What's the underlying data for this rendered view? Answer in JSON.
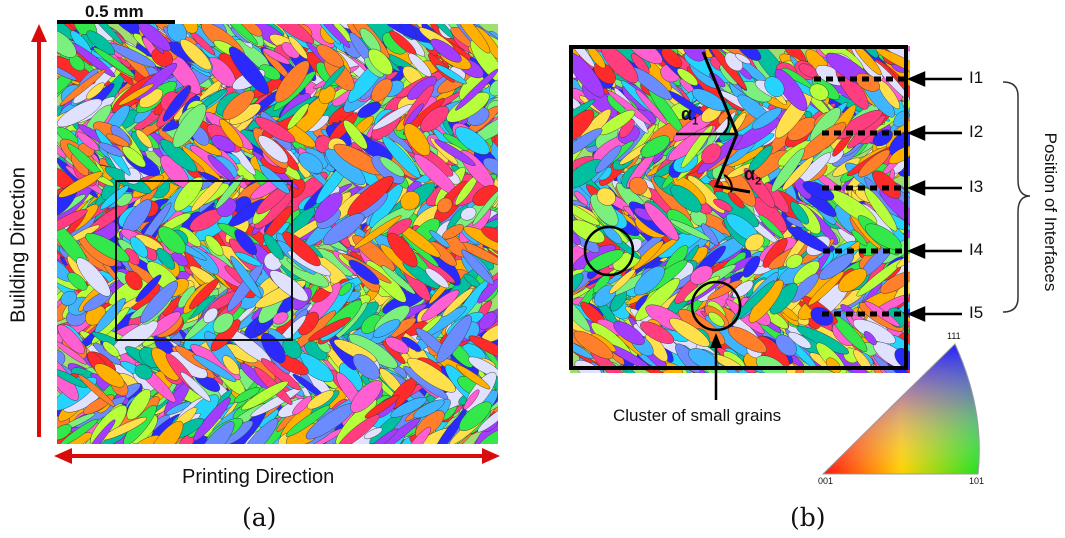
{
  "panel_a": {
    "scale_bar_text": "0.5 mm",
    "vertical_axis_label": "Building Direction",
    "horizontal_axis_label": "Printing Direction",
    "panel_label": "(a)"
  },
  "panel_b": {
    "panel_label": "(b)",
    "angle_labels": [
      "α1",
      "α2"
    ],
    "interface_labels": [
      "I1",
      "I2",
      "I3",
      "I4",
      "I5"
    ],
    "brace_label": "Position of Interfaces",
    "cluster_label": "Cluster of small grains",
    "ipf_labels": {
      "top": "111",
      "bottom_left": "001",
      "bottom_right": "101"
    }
  },
  "colors": {
    "arrow_red": "#d90b0b",
    "outline": "#000000"
  }
}
